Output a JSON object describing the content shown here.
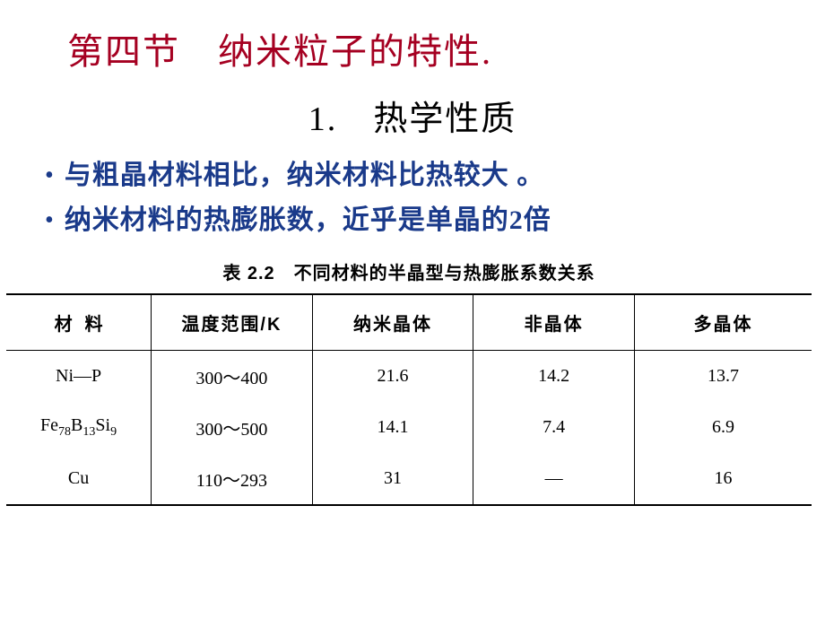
{
  "heading": "第四节　纳米粒子的特性.",
  "subtitle": "1.　热学性质",
  "bullets": {
    "b1": "与粗晶材料相比，纳米材料比热较大 。",
    "b2": "  纳米材料的热膨胀数，近乎是单晶的2倍"
  },
  "table": {
    "caption": "表 2.2　不同材料的半晶型与热膨胀系数关系",
    "headers": {
      "c1": "材料",
      "c2": "温度范围/K",
      "c3": "纳米晶体",
      "c4": "非晶体",
      "c5": "多晶体"
    },
    "rows": [
      {
        "c1_html": "Ni—P",
        "c2": "300～400",
        "c3": "21.6",
        "c4": "14.2",
        "c5": "13.7"
      },
      {
        "c1_html": "Fe<span class=\"sub\">78</span>B<span class=\"sub\">13</span>Si<span class=\"sub\">9</span>",
        "c2": "300～500",
        "c3": "14.1",
        "c4": "7.4",
        "c5": "6.9"
      },
      {
        "c1_html": "Cu",
        "c2": "110～293",
        "c3": "31",
        "c4": "—",
        "c5": "16"
      }
    ]
  },
  "colors": {
    "heading": "#a50021",
    "bullet": "#1a3a8a",
    "text": "#000000",
    "background": "#ffffff",
    "border": "#000000"
  }
}
